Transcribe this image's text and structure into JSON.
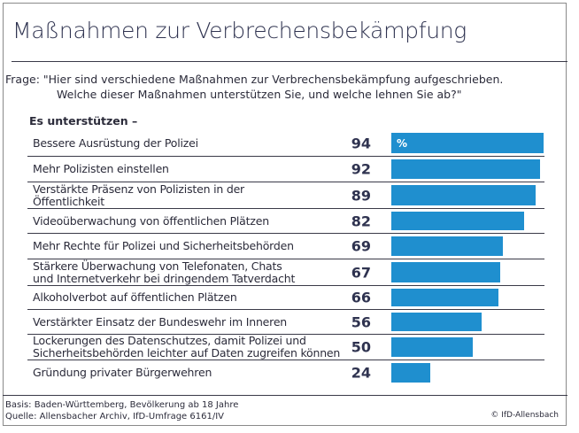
{
  "title": "Maßnahmen zur Verbrechensbekämpfung",
  "question": {
    "line1": "Frage: \"Hier sind verschiedene Maßnahmen zur Verbrechensbekämpfung aufgeschrieben.",
    "line2": "Welche dieser Maßnahmen unterstützen Sie, und welche lehnen Sie ab?\""
  },
  "subheading": "Es unterstützen –",
  "unit_label": "%",
  "chart_data": {
    "type": "bar",
    "orientation": "horizontal",
    "title": "Maßnahmen zur Verbrechensbekämpfung",
    "xlabel": "",
    "ylabel": "",
    "unit": "%",
    "xlim": [
      0,
      100
    ],
    "grid": false,
    "categories": [
      "Bessere Ausrüstung der Polizei",
      "Mehr Polizisten einstellen",
      "Verstärkte Präsenz von Polizisten in der Öffentlichkeit",
      "Videoüberwachung von öffentlichen Plätzen",
      "Mehr Rechte für Polizei und Sicherheitsbehörden",
      "Stärkere Überwachung von Telefonaten, Chats und Internetverkehr bei dringendem Tatverdacht",
      "Alkoholverbot auf öffentlichen Plätzen",
      "Verstärkter Einsatz der Bundeswehr im Inneren",
      "Lockerungen des Datenschutzes, damit Polizei und Sicherheitsbehörden leichter auf Daten zugreifen können",
      "Gründung privater Bürgerwehren"
    ],
    "values": [
      94,
      92,
      89,
      82,
      69,
      67,
      66,
      56,
      50,
      24
    ],
    "bar_color": "#1f8fcf"
  },
  "rows": [
    {
      "label_lines": [
        "Bessere Ausrüstung der Polizei"
      ],
      "value": "94"
    },
    {
      "label_lines": [
        "Mehr Polizisten einstellen"
      ],
      "value": "92"
    },
    {
      "label_lines": [
        "Verstärkte Präsenz von Polizisten in der",
        "Öffentlichkeit"
      ],
      "value": "89"
    },
    {
      "label_lines": [
        "Videoüberwachung von öffentlichen Plätzen"
      ],
      "value": "82"
    },
    {
      "label_lines": [
        "Mehr Rechte für Polizei und Sicherheitsbehörden"
      ],
      "value": "69"
    },
    {
      "label_lines": [
        "Stärkere Überwachung von Telefonaten, Chats",
        "und Internetverkehr bei dringendem Tatverdacht"
      ],
      "value": "67"
    },
    {
      "label_lines": [
        "Alkoholverbot auf öffentlichen Plätzen"
      ],
      "value": "66"
    },
    {
      "label_lines": [
        "Verstärkter Einsatz der Bundeswehr im Inneren"
      ],
      "value": "56"
    },
    {
      "label_lines": [
        "Lockerungen des Datenschutzes, damit Polizei und",
        "Sicherheitsbehörden leichter auf Daten zugreifen können"
      ],
      "value": "50"
    },
    {
      "label_lines": [
        "Gründung privater Bürgerwehren"
      ],
      "value": "24"
    }
  ],
  "footer": {
    "basis": "Basis: Baden-Württemberg, Bevölkerung ab 18 Jahre",
    "source": "Quelle: Allensbacher Archiv, IfD-Umfrage 6161/IV",
    "copyright": "© IfD-Allensbach"
  }
}
